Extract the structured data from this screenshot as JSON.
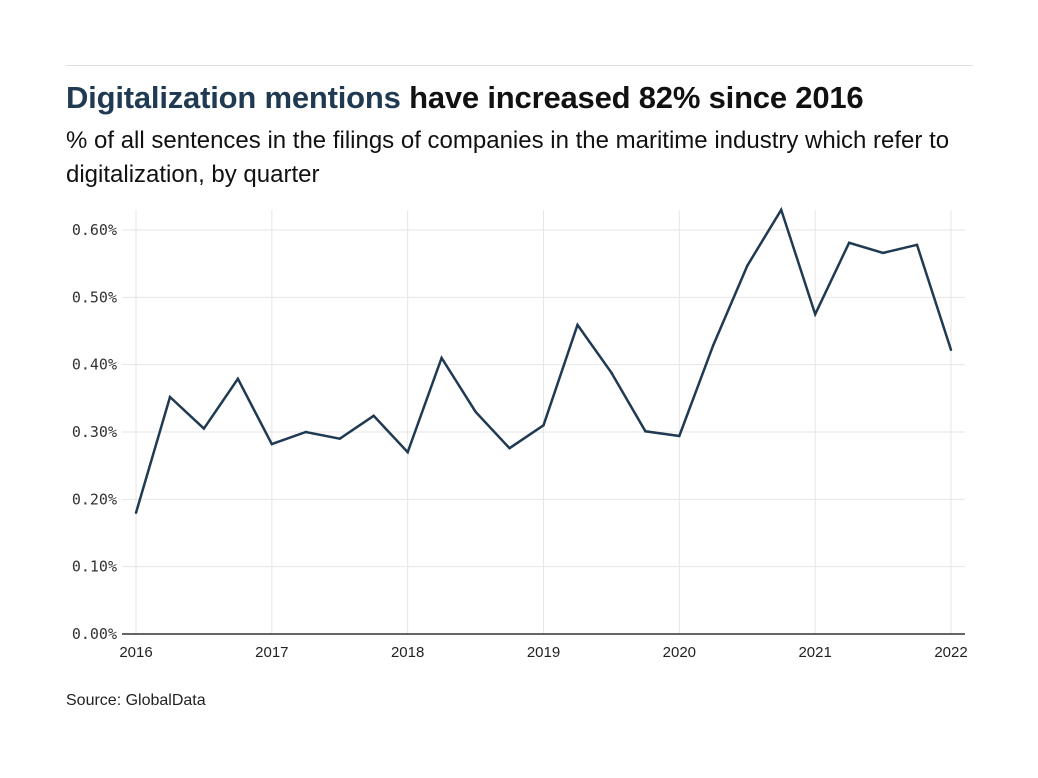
{
  "header": {
    "title_highlight": "Digitalization mentions",
    "title_rest": " have increased 82% since 2016",
    "subtitle": "% of all sentences in the filings of companies in the maritime industry which refer to digitalization, by quarter"
  },
  "footer": {
    "source": "Source: GlobalData"
  },
  "colors": {
    "line": "#1f3a52",
    "title_highlight": "#1f3a52",
    "grid": "#e6e6e6",
    "axis": "#333333"
  },
  "chart_data": {
    "type": "line",
    "title": "Digitalization mentions have increased 82% since 2016",
    "subtitle": "% of all sentences in the filings of companies in the maritime industry which refer to digitalization, by quarter",
    "xlabel": "",
    "ylabel": "",
    "x": [
      2016.0,
      2016.25,
      2016.5,
      2016.75,
      2017.0,
      2017.25,
      2017.5,
      2017.75,
      2018.0,
      2018.25,
      2018.5,
      2018.75,
      2019.0,
      2019.25,
      2019.5,
      2019.75,
      2020.0,
      2020.25,
      2020.5,
      2020.75,
      2021.0,
      2021.25,
      2021.5,
      2021.75,
      2022.0
    ],
    "x_labels": [
      "2016 Q1",
      "2016 Q2",
      "2016 Q3",
      "2016 Q4",
      "2017 Q1",
      "2017 Q2",
      "2017 Q3",
      "2017 Q4",
      "2018 Q1",
      "2018 Q2",
      "2018 Q3",
      "2018 Q4",
      "2019 Q1",
      "2019 Q2",
      "2019 Q3",
      "2019 Q4",
      "2020 Q1",
      "2020 Q2",
      "2020 Q3",
      "2020 Q4",
      "2021 Q1",
      "2021 Q2",
      "2021 Q3",
      "2021 Q4",
      "2022 Q1"
    ],
    "series": [
      {
        "name": "Digitalization mentions (% of sentences)",
        "values": [
          0.18,
          0.352,
          0.305,
          0.379,
          0.282,
          0.3,
          0.29,
          0.324,
          0.27,
          0.41,
          0.33,
          0.276,
          0.31,
          0.459,
          0.388,
          0.301,
          0.294,
          0.429,
          0.547,
          0.63,
          0.475,
          0.581,
          0.566,
          0.578,
          0.422
        ]
      }
    ],
    "xlim": [
      2016,
      2022
    ],
    "ylim": [
      0,
      0.63
    ],
    "x_ticks": [
      2016,
      2017,
      2018,
      2019,
      2020,
      2021,
      2022
    ],
    "x_tick_labels": [
      "2016",
      "2017",
      "2018",
      "2019",
      "2020",
      "2021",
      "2022"
    ],
    "y_ticks": [
      0,
      0.1,
      0.2,
      0.3,
      0.4,
      0.5,
      0.6
    ],
    "y_tick_labels": [
      "0.00%",
      "0.10%",
      "0.20%",
      "0.30%",
      "0.40%",
      "0.50%",
      "0.60%"
    ],
    "grid": true,
    "legend": "none",
    "source": "Source: GlobalData"
  }
}
